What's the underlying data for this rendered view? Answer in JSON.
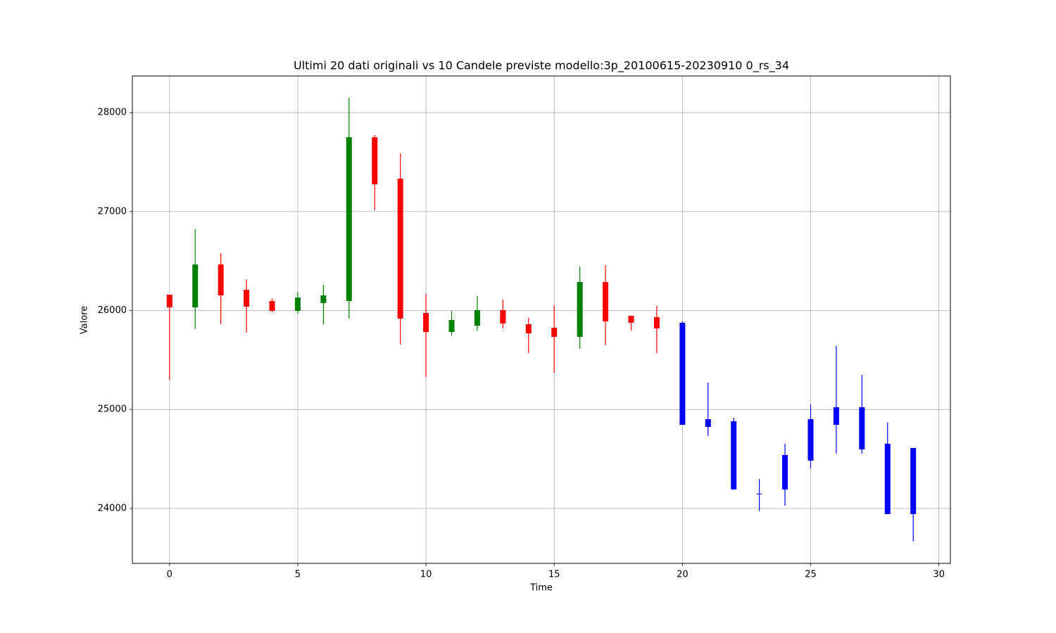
{
  "chart_data": {
    "type": "candlestick",
    "title": "Ultimi 20 dati originali vs 10 Candele previste modello:3p_20100615-20230910 0_rs_34",
    "x_label": "Time",
    "y_label": "Valore",
    "x": [
      0,
      1,
      2,
      3,
      4,
      5,
      6,
      7,
      8,
      9,
      10,
      11,
      12,
      13,
      14,
      15,
      16,
      17,
      18,
      19,
      20,
      21,
      22,
      23,
      24,
      25,
      26,
      27,
      28,
      29
    ],
    "open": [
      26160,
      26032,
      26465,
      26210,
      26096,
      25996,
      26075,
      26096,
      27751,
      27332,
      25975,
      25783,
      25847,
      26004,
      25861,
      25826,
      25734,
      26288,
      25947,
      25933,
      25876,
      24902,
      24881,
      24150,
      24540,
      24902,
      25023,
      25023,
      24654,
      24611
    ],
    "high": [
      26160,
      26820,
      26579,
      26316,
      26124,
      26188,
      26259,
      28149,
      27773,
      27588,
      26167,
      25996,
      26146,
      26110,
      25925,
      26053,
      26444,
      26458,
      25947,
      26046,
      25890,
      25272,
      24916,
      24298,
      24654,
      25052,
      25641,
      25350,
      24867,
      24611
    ],
    "low": [
      25300,
      25812,
      25861,
      25776,
      25982,
      25968,
      25861,
      25918,
      27012,
      25655,
      25329,
      25748,
      25797,
      25819,
      25570,
      25371,
      25613,
      25648,
      25797,
      25570,
      24845,
      24732,
      24192,
      23972,
      24028,
      24405,
      24554,
      24554,
      23943,
      23666
    ],
    "close": [
      26032,
      26465,
      26153,
      26039,
      25996,
      26131,
      26153,
      27751,
      27275,
      25918,
      25783,
      25904,
      26004,
      25869,
      25769,
      25734,
      26288,
      25890,
      25876,
      25819,
      24845,
      24824,
      24192,
      24150,
      24192,
      24483,
      24845,
      24597,
      23943,
      23943
    ],
    "colors": [
      "red",
      "green",
      "red",
      "red",
      "red",
      "green",
      "green",
      "green",
      "red",
      "red",
      "red",
      "green",
      "green",
      "red",
      "red",
      "red",
      "green",
      "red",
      "red",
      "red",
      "blue",
      "blue",
      "blue",
      "blue",
      "blue",
      "blue",
      "blue",
      "blue",
      "blue",
      "blue"
    ],
    "xlim": [
      -1.45,
      30.45
    ],
    "ylim": [
      23445,
      28370
    ],
    "xticks": [
      0,
      5,
      10,
      15,
      20,
      25,
      30
    ],
    "yticks": [
      24000,
      25000,
      26000,
      27000,
      28000
    ],
    "grid": true
  }
}
